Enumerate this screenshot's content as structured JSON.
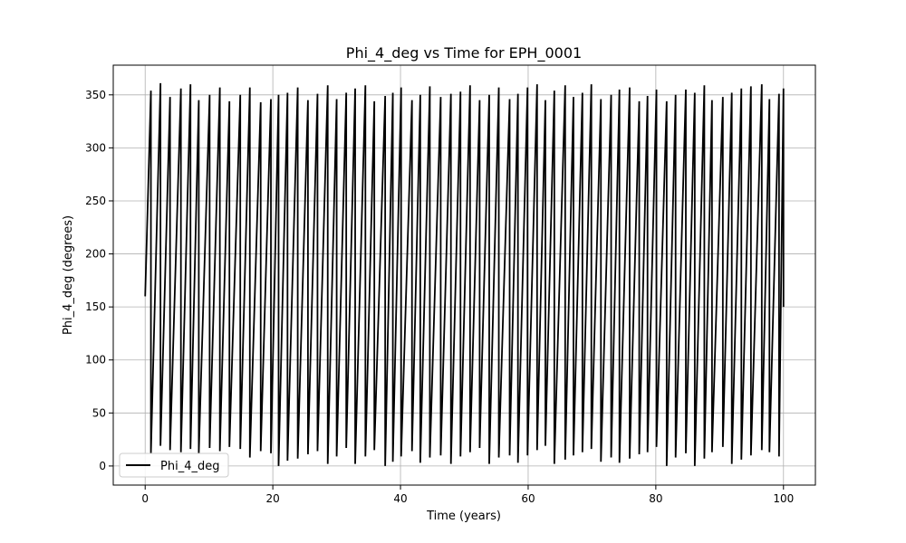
{
  "chart_data": {
    "type": "line",
    "title": "Phi_4_deg vs Time for EPH_0001",
    "xlabel": "Time (years)",
    "ylabel": "Phi_4_deg (degrees)",
    "xlim": [
      -5,
      105
    ],
    "ylim": [
      -18,
      378
    ],
    "x_ticks": [
      0,
      20,
      40,
      60,
      80,
      100
    ],
    "y_ticks": [
      0,
      50,
      100,
      150,
      200,
      250,
      300,
      350
    ],
    "grid": true,
    "legend_position": "lower-left",
    "series": [
      {
        "name": "Phi_4_deg",
        "color": "#000000",
        "cycle_starts_years": [
          0.0,
          0.9,
          2.4,
          3.9,
          5.6,
          7.1,
          8.4,
          10.1,
          11.7,
          13.2,
          14.9,
          16.4,
          18.1,
          19.7,
          20.9,
          22.3,
          23.9,
          25.5,
          27.0,
          28.6,
          30.0,
          31.5,
          32.9,
          34.5,
          35.9,
          37.6,
          38.8,
          40.1,
          41.8,
          43.1,
          44.6,
          46.3,
          47.9,
          49.4,
          50.9,
          52.4,
          53.9,
          55.4,
          57.1,
          58.4,
          59.9,
          61.4,
          62.7,
          64.1,
          65.8,
          67.1,
          68.5,
          69.9,
          71.4,
          73.0,
          74.3,
          75.9,
          77.4,
          78.7,
          80.1,
          81.7,
          83.1,
          84.7,
          86.1,
          87.6,
          88.8,
          90.5,
          91.9,
          93.4,
          94.9,
          96.6,
          97.8,
          99.3
        ],
        "cycle_start_values_deg": [
          160,
          12,
          19,
          15,
          13,
          16,
          12,
          17,
          14,
          18,
          16,
          8,
          14,
          12,
          0,
          5,
          7,
          11,
          14,
          2,
          9,
          17,
          2,
          9,
          15,
          0,
          4,
          9,
          14,
          3,
          8,
          10,
          2,
          9,
          13,
          17,
          2,
          8,
          10,
          3,
          10,
          15,
          19,
          2,
          6,
          10,
          13,
          16,
          4,
          8,
          3,
          7,
          11,
          13,
          18,
          0,
          8,
          12,
          0,
          7,
          13,
          18,
          2,
          6,
          10,
          15,
          13,
          9
        ],
        "cycle_end_values_deg": [
          354,
          361,
          348,
          356,
          360,
          345,
          350,
          357,
          344,
          350,
          357,
          343,
          346,
          350,
          352,
          357,
          345,
          351,
          359,
          346,
          352,
          356,
          359,
          344,
          349,
          352,
          357,
          345,
          350,
          358,
          348,
          351,
          353,
          359,
          345,
          350,
          357,
          346,
          351,
          357,
          360,
          345,
          354,
          359,
          348,
          352,
          360,
          346,
          350,
          355,
          357,
          344,
          349,
          355,
          344,
          350,
          355,
          352,
          359,
          345,
          348,
          352,
          356,
          358,
          360,
          346,
          351,
          356
        ],
        "end": {
          "x": 100.0,
          "y": 150
        }
      }
    ]
  }
}
